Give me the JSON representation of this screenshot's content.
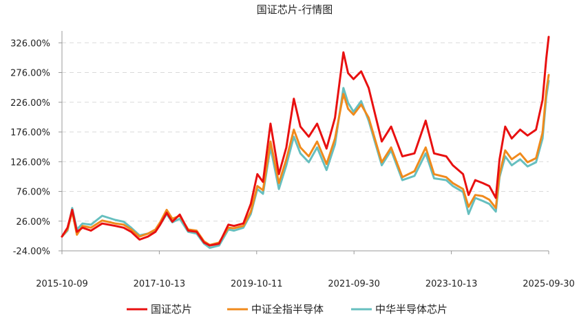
{
  "chart_data": {
    "type": "line",
    "title": "国证芯片-行情图",
    "xlabel": "",
    "ylabel": "",
    "y_unit": "%",
    "ylim": [
      -24,
      346
    ],
    "y_ticks": [
      -24,
      26,
      76,
      126,
      176,
      226,
      276,
      326
    ],
    "y_tick_labels": [
      "-24.00%",
      "26.00%",
      "76.00%",
      "126.00%",
      "176.00%",
      "226.00%",
      "276.00%",
      "326.00%"
    ],
    "x_range": [
      "2015-10-09",
      "2025-09-30"
    ],
    "x_tick_labels": [
      "2015-10-09",
      "2017-10-13",
      "2019-10-11",
      "2021-09-30",
      "2023-10-13",
      "2025-09-30"
    ],
    "grid": "horizontal dashed",
    "legend_position": "bottom",
    "series": [
      {
        "name": "国证芯片",
        "color": "#e81010",
        "points": [
          [
            "2015-10-09",
            0
          ],
          [
            "2015-11-20",
            15
          ],
          [
            "2015-12-25",
            45
          ],
          [
            "2016-01-29",
            8
          ],
          [
            "2016-03-11",
            15
          ],
          [
            "2016-05-13",
            10
          ],
          [
            "2016-08-05",
            22
          ],
          [
            "2016-11-11",
            18
          ],
          [
            "2017-01-13",
            15
          ],
          [
            "2017-03-10",
            8
          ],
          [
            "2017-05-12",
            -5
          ],
          [
            "2017-07-14",
            0
          ],
          [
            "2017-09-08",
            8
          ],
          [
            "2017-10-13",
            20
          ],
          [
            "2017-12-01",
            40
          ],
          [
            "2018-01-12",
            25
          ],
          [
            "2018-03-09",
            37
          ],
          [
            "2018-05-11",
            10
          ],
          [
            "2018-07-13",
            8
          ],
          [
            "2018-09-07",
            -10
          ],
          [
            "2018-10-19",
            -15
          ],
          [
            "2018-12-28",
            -12
          ],
          [
            "2019-03-08",
            20
          ],
          [
            "2019-04-19",
            18
          ],
          [
            "2019-06-28",
            22
          ],
          [
            "2019-08-23",
            55
          ],
          [
            "2019-10-11",
            105
          ],
          [
            "2019-11-22",
            92
          ],
          [
            "2020-01-17",
            190
          ],
          [
            "2020-03-20",
            105
          ],
          [
            "2020-05-15",
            150
          ],
          [
            "2020-07-10",
            232
          ],
          [
            "2020-08-28",
            185
          ],
          [
            "2020-10-30",
            168
          ],
          [
            "2020-12-31",
            190
          ],
          [
            "2021-03-12",
            148
          ],
          [
            "2021-05-14",
            200
          ],
          [
            "2021-07-16",
            310
          ],
          [
            "2021-08-20",
            275
          ],
          [
            "2021-09-30",
            265
          ],
          [
            "2021-11-26",
            278
          ],
          [
            "2022-01-21",
            250
          ],
          [
            "2022-04-29",
            160
          ],
          [
            "2022-07-08",
            185
          ],
          [
            "2022-09-30",
            135
          ],
          [
            "2022-12-30",
            140
          ],
          [
            "2023-03-24",
            195
          ],
          [
            "2023-05-26",
            140
          ],
          [
            "2023-08-25",
            135
          ],
          [
            "2023-10-13",
            120
          ],
          [
            "2023-12-29",
            105
          ],
          [
            "2024-02-08",
            70
          ],
          [
            "2024-03-29",
            95
          ],
          [
            "2024-05-24",
            90
          ],
          [
            "2024-07-12",
            85
          ],
          [
            "2024-08-30",
            65
          ],
          [
            "2024-09-27",
            130
          ],
          [
            "2024-11-08",
            185
          ],
          [
            "2024-12-27",
            165
          ],
          [
            "2025-02-28",
            180
          ],
          [
            "2025-04-25",
            170
          ],
          [
            "2025-06-27",
            180
          ],
          [
            "2025-08-15",
            230
          ],
          [
            "2025-09-12",
            300
          ],
          [
            "2025-09-30",
            336
          ]
        ]
      },
      {
        "name": "中证全指半导体",
        "color": "#f08a1c",
        "points": [
          [
            "2015-10-09",
            0
          ],
          [
            "2015-11-20",
            12
          ],
          [
            "2015-12-25",
            42
          ],
          [
            "2016-01-29",
            3
          ],
          [
            "2016-03-11",
            18
          ],
          [
            "2016-05-13",
            15
          ],
          [
            "2016-08-05",
            27
          ],
          [
            "2016-11-11",
            22
          ],
          [
            "2017-01-13",
            20
          ],
          [
            "2017-03-10",
            12
          ],
          [
            "2017-05-12",
            0
          ],
          [
            "2017-07-14",
            5
          ],
          [
            "2017-09-08",
            12
          ],
          [
            "2017-10-13",
            24
          ],
          [
            "2017-12-01",
            45
          ],
          [
            "2018-01-12",
            30
          ],
          [
            "2018-03-09",
            35
          ],
          [
            "2018-05-11",
            12
          ],
          [
            "2018-07-13",
            10
          ],
          [
            "2018-09-07",
            -8
          ],
          [
            "2018-10-19",
            -14
          ],
          [
            "2018-12-28",
            -10
          ],
          [
            "2019-03-08",
            15
          ],
          [
            "2019-04-19",
            14
          ],
          [
            "2019-06-28",
            18
          ],
          [
            "2019-08-23",
            42
          ],
          [
            "2019-10-11",
            85
          ],
          [
            "2019-11-22",
            78
          ],
          [
            "2020-01-17",
            160
          ],
          [
            "2020-03-20",
            90
          ],
          [
            "2020-05-15",
            130
          ],
          [
            "2020-07-10",
            180
          ],
          [
            "2020-08-28",
            150
          ],
          [
            "2020-10-30",
            135
          ],
          [
            "2020-12-31",
            160
          ],
          [
            "2021-03-12",
            122
          ],
          [
            "2021-05-14",
            165
          ],
          [
            "2021-07-16",
            240
          ],
          [
            "2021-08-20",
            215
          ],
          [
            "2021-09-30",
            205
          ],
          [
            "2021-11-26",
            222
          ],
          [
            "2022-01-21",
            200
          ],
          [
            "2022-04-29",
            125
          ],
          [
            "2022-07-08",
            150
          ],
          [
            "2022-09-30",
            100
          ],
          [
            "2022-12-30",
            110
          ],
          [
            "2023-03-24",
            150
          ],
          [
            "2023-05-26",
            105
          ],
          [
            "2023-08-25",
            100
          ],
          [
            "2023-10-13",
            90
          ],
          [
            "2023-12-29",
            80
          ],
          [
            "2024-02-08",
            50
          ],
          [
            "2024-03-29",
            70
          ],
          [
            "2024-05-24",
            68
          ],
          [
            "2024-07-12",
            62
          ],
          [
            "2024-08-30",
            48
          ],
          [
            "2024-09-27",
            105
          ],
          [
            "2024-11-08",
            145
          ],
          [
            "2024-12-27",
            130
          ],
          [
            "2025-02-28",
            140
          ],
          [
            "2025-04-25",
            125
          ],
          [
            "2025-06-27",
            132
          ],
          [
            "2025-08-15",
            175
          ],
          [
            "2025-09-12",
            245
          ],
          [
            "2025-09-30",
            272
          ]
        ]
      },
      {
        "name": "中华半导体芯片",
        "color": "#66bfbf",
        "points": [
          [
            "2015-10-09",
            0
          ],
          [
            "2015-11-20",
            10
          ],
          [
            "2015-12-25",
            48
          ],
          [
            "2016-01-29",
            12
          ],
          [
            "2016-03-11",
            22
          ],
          [
            "2016-05-13",
            20
          ],
          [
            "2016-08-05",
            35
          ],
          [
            "2016-11-11",
            28
          ],
          [
            "2017-01-13",
            25
          ],
          [
            "2017-03-10",
            15
          ],
          [
            "2017-05-12",
            2
          ],
          [
            "2017-07-14",
            5
          ],
          [
            "2017-09-08",
            10
          ],
          [
            "2017-10-13",
            20
          ],
          [
            "2017-12-01",
            38
          ],
          [
            "2018-01-12",
            24
          ],
          [
            "2018-03-09",
            30
          ],
          [
            "2018-05-11",
            8
          ],
          [
            "2018-07-13",
            5
          ],
          [
            "2018-09-07",
            -12
          ],
          [
            "2018-10-19",
            -19
          ],
          [
            "2018-12-28",
            -15
          ],
          [
            "2019-03-08",
            12
          ],
          [
            "2019-04-19",
            10
          ],
          [
            "2019-06-28",
            15
          ],
          [
            "2019-08-23",
            38
          ],
          [
            "2019-10-11",
            80
          ],
          [
            "2019-11-22",
            72
          ],
          [
            "2020-01-17",
            150
          ],
          [
            "2020-03-20",
            80
          ],
          [
            "2020-05-15",
            120
          ],
          [
            "2020-07-10",
            168
          ],
          [
            "2020-08-28",
            140
          ],
          [
            "2020-10-30",
            125
          ],
          [
            "2020-12-31",
            150
          ],
          [
            "2021-03-12",
            112
          ],
          [
            "2021-05-14",
            155
          ],
          [
            "2021-07-16",
            250
          ],
          [
            "2021-08-20",
            225
          ],
          [
            "2021-09-30",
            210
          ],
          [
            "2021-11-26",
            228
          ],
          [
            "2022-01-21",
            195
          ],
          [
            "2022-04-29",
            120
          ],
          [
            "2022-07-08",
            145
          ],
          [
            "2022-09-30",
            95
          ],
          [
            "2022-12-30",
            102
          ],
          [
            "2023-03-24",
            140
          ],
          [
            "2023-05-26",
            98
          ],
          [
            "2023-08-25",
            95
          ],
          [
            "2023-10-13",
            85
          ],
          [
            "2023-12-29",
            75
          ],
          [
            "2024-02-08",
            38
          ],
          [
            "2024-03-29",
            65
          ],
          [
            "2024-05-24",
            60
          ],
          [
            "2024-07-12",
            55
          ],
          [
            "2024-08-30",
            42
          ],
          [
            "2024-09-27",
            100
          ],
          [
            "2024-11-08",
            135
          ],
          [
            "2024-12-27",
            120
          ],
          [
            "2025-02-28",
            130
          ],
          [
            "2025-04-25",
            118
          ],
          [
            "2025-06-27",
            125
          ],
          [
            "2025-08-15",
            165
          ],
          [
            "2025-09-12",
            235
          ],
          [
            "2025-09-30",
            262
          ]
        ]
      }
    ]
  }
}
